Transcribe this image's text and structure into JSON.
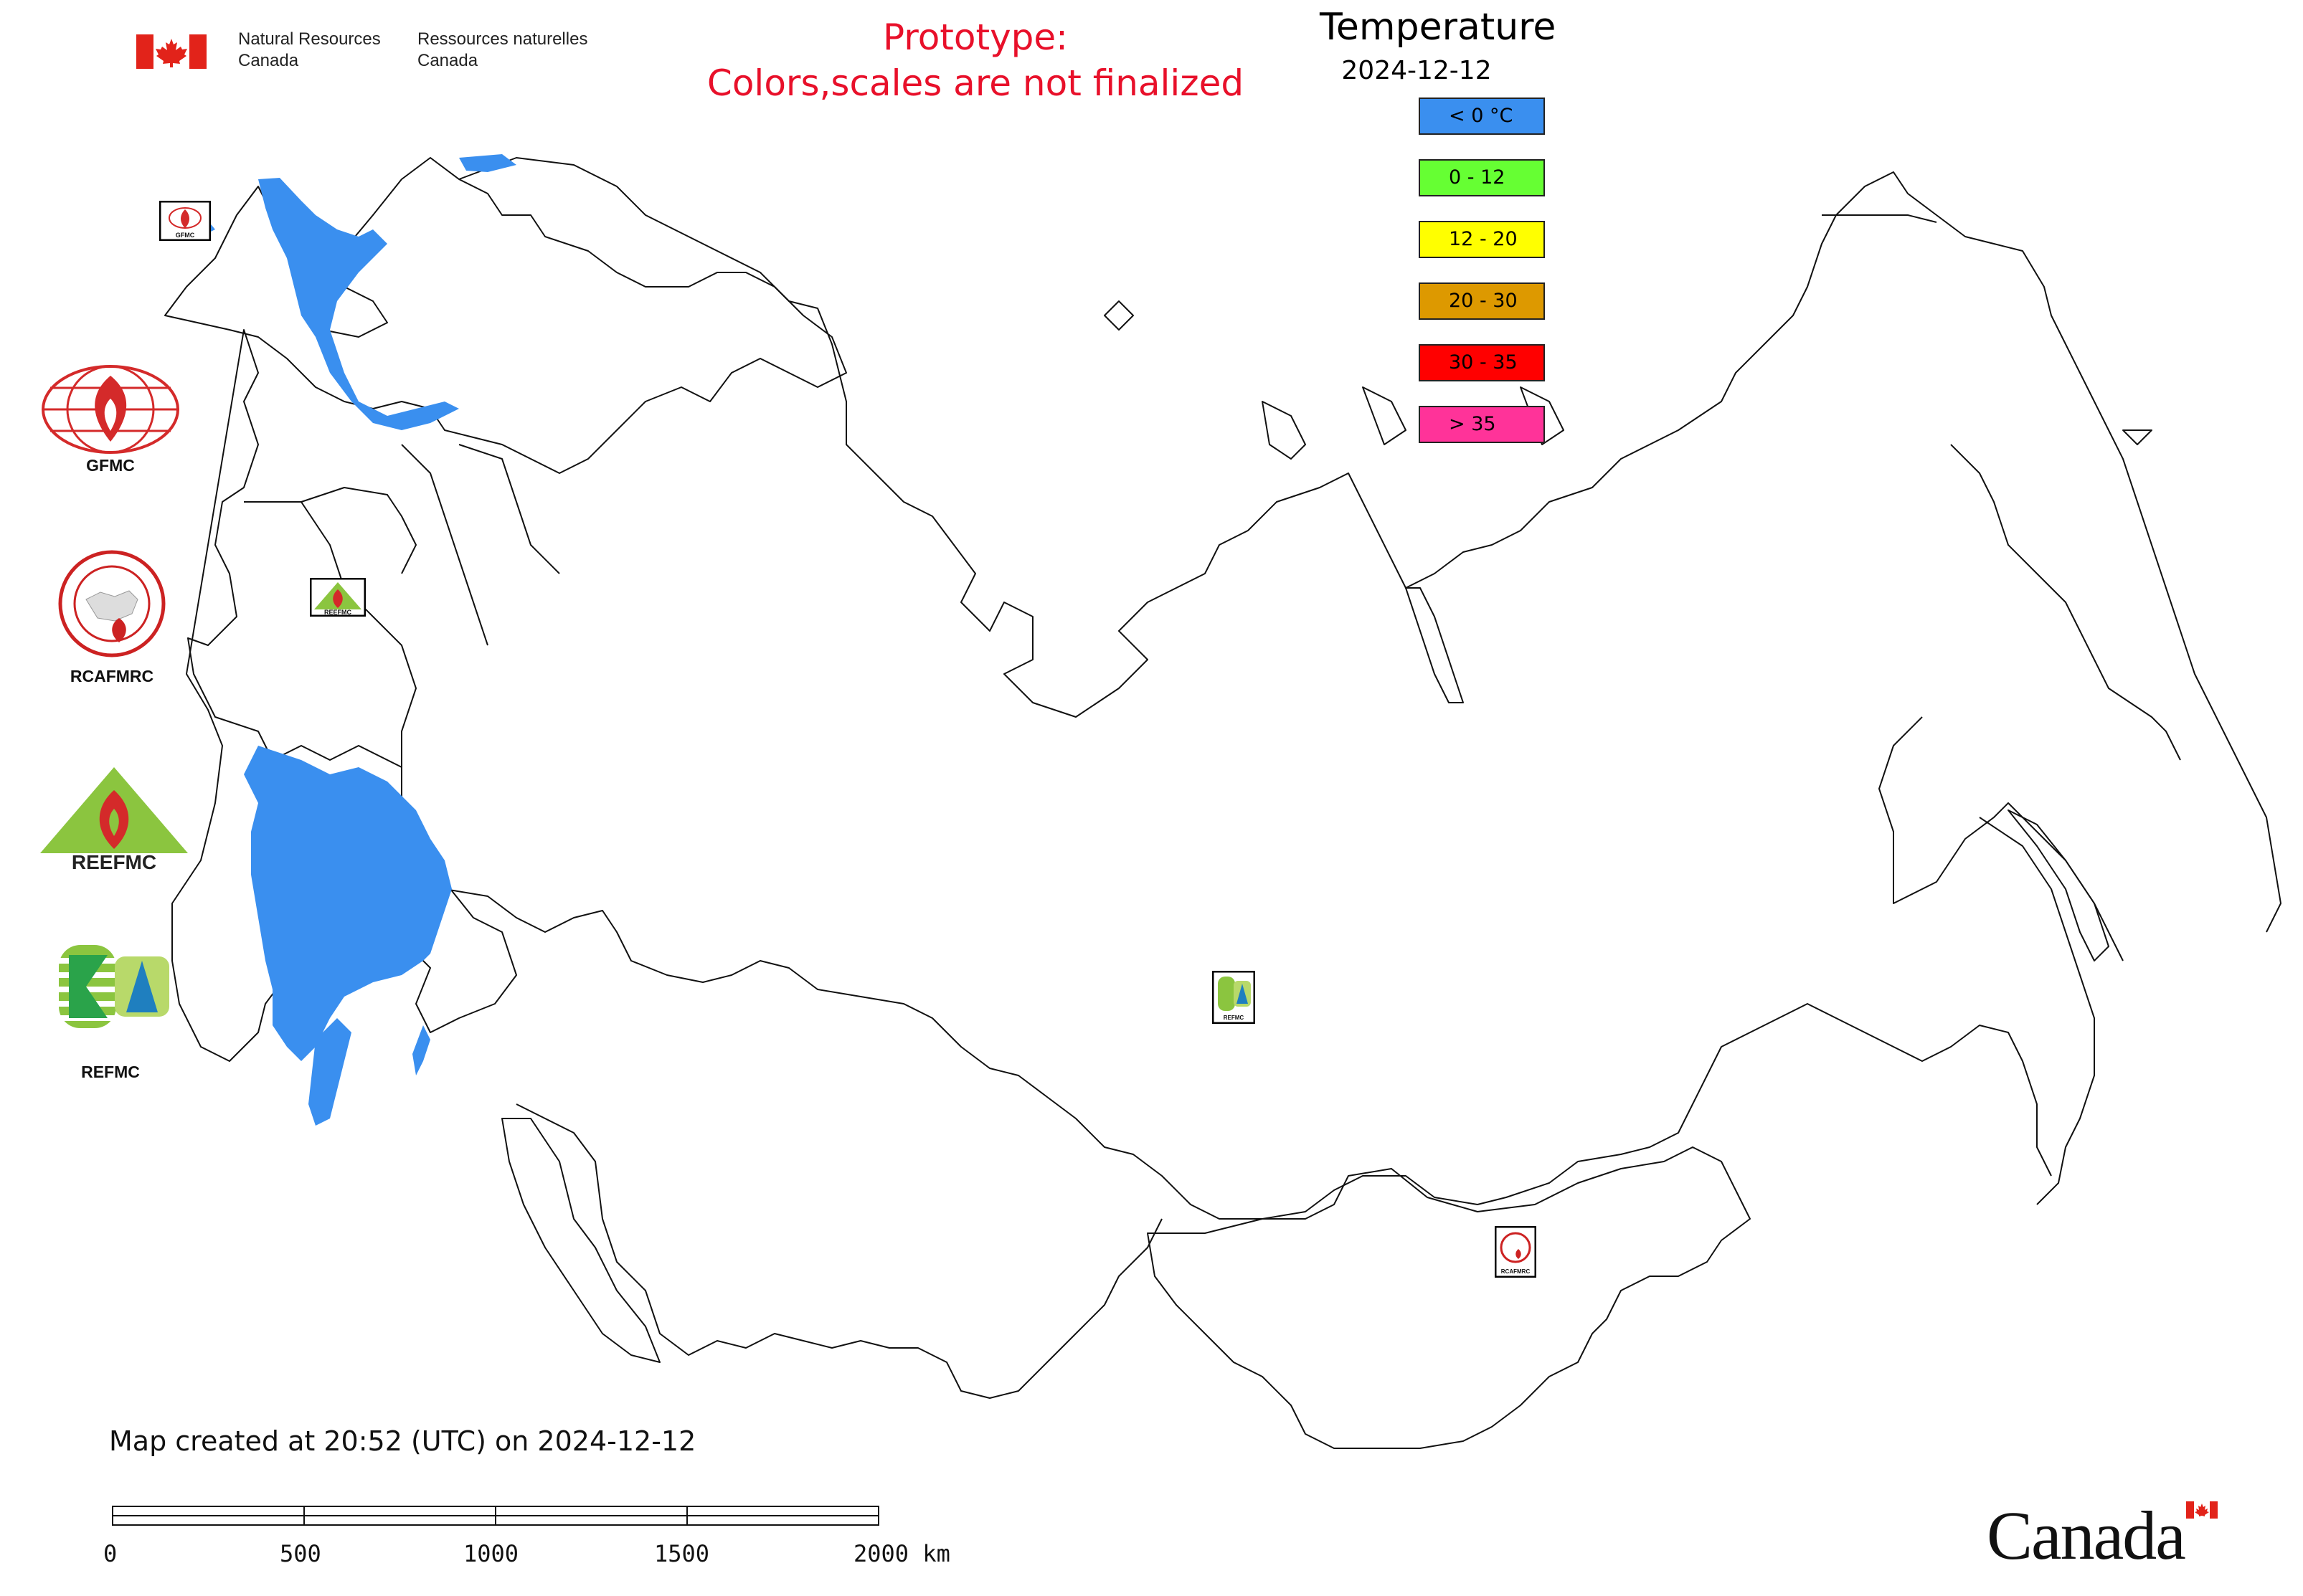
{
  "header": {
    "agency_en": [
      "Natural Resources",
      "Canada"
    ],
    "agency_fr": [
      "Ressources naturelles",
      "Canada"
    ],
    "prototype_line1": "Prototype:",
    "prototype_line2": "Colors,scales are not finalized"
  },
  "legend": {
    "title": "Temperature",
    "date": "2024-12-12",
    "items": [
      {
        "label": "< 0 °C",
        "color": "#3a8fef"
      },
      {
        "label": "0 - 12",
        "color": "#66ff33"
      },
      {
        "label": "12 - 20",
        "color": "#ffff00"
      },
      {
        "label": "20 - 30",
        "color": "#dd9900"
      },
      {
        "label": "30 - 35",
        "color": "#ff0000"
      },
      {
        "label": "> 35",
        "color": "#ff3399"
      }
    ]
  },
  "organizations": [
    {
      "label": "GFMC"
    },
    {
      "label": "RCAFMRC"
    },
    {
      "label": ""
    },
    {
      "label": "REFMC"
    }
  ],
  "map_markers": {
    "gfmc": "GFMC",
    "reefmc": "REEFMC",
    "refmc": "REFMC",
    "rcafmrc": "RCAFMRC"
  },
  "footer": {
    "created": "Map created at 20:52 (UTC) on 2024-12-12",
    "wordmark": "Canada",
    "scale_labels": [
      "0",
      "500",
      "1000",
      "1500",
      "2000 km"
    ]
  },
  "colors": {
    "cold": "#3a8fef",
    "prototype_red": "#e8102a",
    "flag_red": "#e2231a"
  }
}
